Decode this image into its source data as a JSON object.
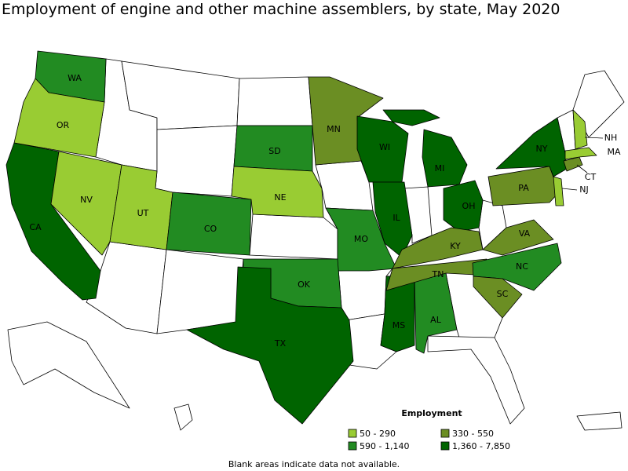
{
  "title": "Employment of engine and other machine assemblers, by state, May 2020",
  "legend": {
    "title": "Employment",
    "items": [
      {
        "label": "50 - 290",
        "color": "#99cc33"
      },
      {
        "label": "330 - 550",
        "color": "#6b8e23"
      },
      {
        "label": "590 - 1,140",
        "color": "#228b22"
      },
      {
        "label": "1,360 - 7,850",
        "color": "#006400"
      }
    ]
  },
  "states": [
    {
      "label": "WA",
      "range": "590 - 1,140"
    },
    {
      "label": "OR",
      "range": "50 - 290"
    },
    {
      "label": "CA",
      "range": "1,360 - 7,850"
    },
    {
      "label": "NV",
      "range": "50 - 290"
    },
    {
      "label": "UT",
      "range": "50 - 290"
    },
    {
      "label": "CO",
      "range": "590 - 1,140"
    },
    {
      "label": "SD",
      "range": "590 - 1,140"
    },
    {
      "label": "NE",
      "range": "50 - 290"
    },
    {
      "label": "MN",
      "range": "330 - 550"
    },
    {
      "label": "WI",
      "range": "1,360 - 7,850"
    },
    {
      "label": "IL",
      "range": "1,360 - 7,850"
    },
    {
      "label": "MI",
      "range": "1,360 - 7,850"
    },
    {
      "label": "OH",
      "range": "1,360 - 7,850"
    },
    {
      "label": "MO",
      "range": "590 - 1,140"
    },
    {
      "label": "OK",
      "range": "590 - 1,140"
    },
    {
      "label": "TX",
      "range": "1,360 - 7,850"
    },
    {
      "label": "MS",
      "range": "1,360 - 7,850"
    },
    {
      "label": "AL",
      "range": "590 - 1,140"
    },
    {
      "label": "TN",
      "range": "330 - 550"
    },
    {
      "label": "KY",
      "range": "330 - 550"
    },
    {
      "label": "NC",
      "range": "590 - 1,140"
    },
    {
      "label": "SC",
      "range": "330 - 550"
    },
    {
      "label": "VA",
      "range": "330 - 550"
    },
    {
      "label": "PA",
      "range": "330 - 550"
    },
    {
      "label": "NY",
      "range": "1,360 - 7,850"
    },
    {
      "label": "NJ",
      "range": "50 - 290"
    },
    {
      "label": "CT",
      "range": "330 - 550"
    },
    {
      "label": "MA",
      "range": "50 - 290"
    },
    {
      "label": "NH",
      "range": "50 - 290"
    }
  ],
  "footnote": "Blank areas indicate data not available."
}
